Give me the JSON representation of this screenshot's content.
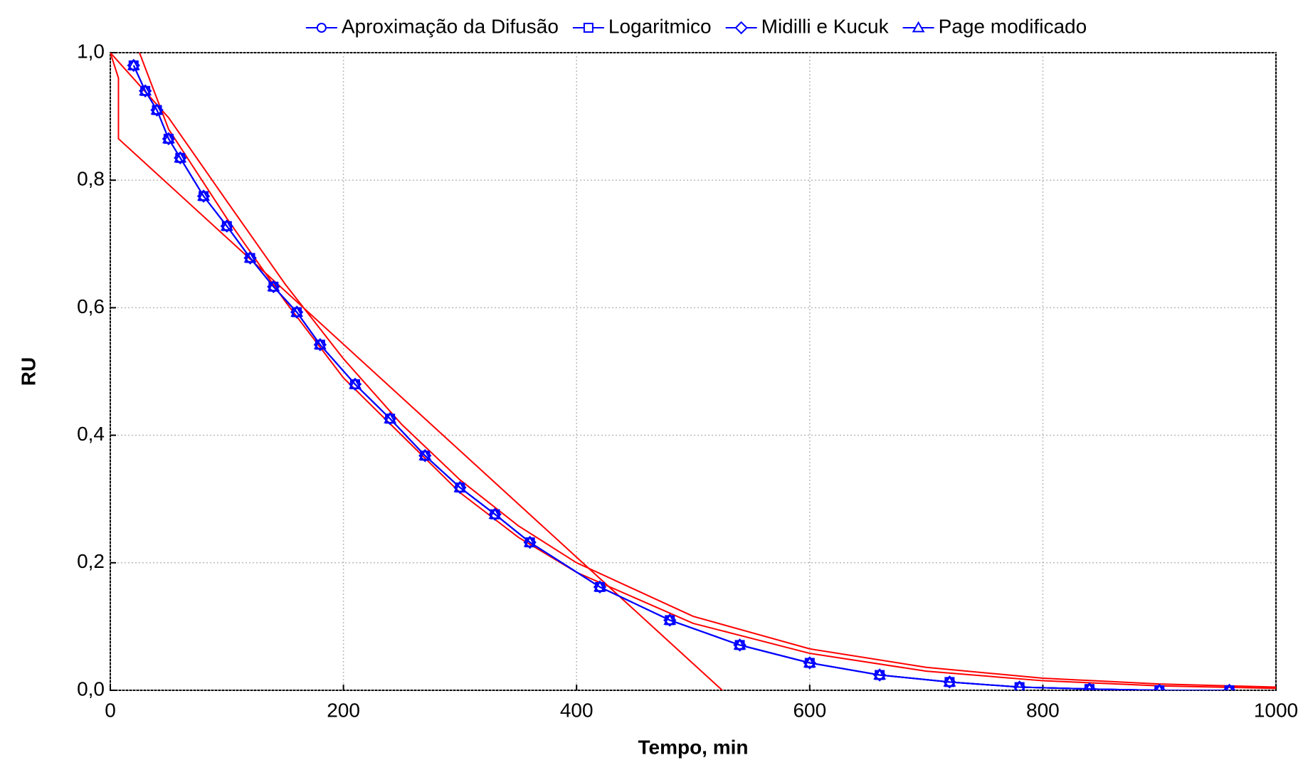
{
  "chart_data": {
    "type": "line",
    "xlabel": "Tempo, min",
    "ylabel": "RU",
    "x": [
      20,
      30,
      40,
      50,
      60,
      80,
      100,
      120,
      140,
      160,
      180,
      210,
      240,
      270,
      300,
      330,
      360,
      420,
      480,
      540,
      600,
      660,
      720,
      780,
      840,
      900,
      960
    ],
    "series": [
      {
        "name": "Aproximação da Difusão",
        "color": "#0000ff",
        "marker": "circle",
        "values": [
          0.98,
          0.94,
          0.91,
          0.865,
          0.835,
          0.775,
          0.728,
          0.678,
          0.633,
          0.593,
          0.542,
          0.48,
          0.426,
          0.368,
          0.318,
          0.276,
          0.232,
          0.162,
          0.11,
          0.071,
          0.043,
          0.024,
          0.013,
          0.005,
          0.002,
          0.0,
          0.0
        ]
      },
      {
        "name": "Logaritmico",
        "color": "#0000ff",
        "marker": "square",
        "values": [
          0.98,
          0.94,
          0.91,
          0.865,
          0.835,
          0.775,
          0.728,
          0.678,
          0.633,
          0.593,
          0.542,
          0.48,
          0.426,
          0.368,
          0.318,
          0.276,
          0.232,
          0.162,
          0.11,
          0.071,
          0.043,
          0.024,
          0.013,
          0.005,
          0.002,
          0.0,
          0.0
        ]
      },
      {
        "name": "Midilli e Kucuk",
        "color": "#0000ff",
        "marker": "diamond",
        "values": [
          0.98,
          0.94,
          0.91,
          0.865,
          0.835,
          0.775,
          0.728,
          0.678,
          0.633,
          0.593,
          0.542,
          0.48,
          0.426,
          0.368,
          0.318,
          0.276,
          0.232,
          0.162,
          0.11,
          0.071,
          0.043,
          0.024,
          0.013,
          0.005,
          0.002,
          0.0,
          0.0
        ]
      },
      {
        "name": "Page modificado",
        "color": "#0000ff",
        "marker": "triangle",
        "values": [
          0.98,
          0.94,
          0.91,
          0.865,
          0.835,
          0.775,
          0.728,
          0.678,
          0.633,
          0.593,
          0.542,
          0.48,
          0.426,
          0.368,
          0.318,
          0.276,
          0.232,
          0.162,
          0.11,
          0.071,
          0.043,
          0.024,
          0.013,
          0.005,
          0.002,
          0.0,
          0.0
        ]
      }
    ],
    "fits": [
      {
        "color": "#ff0000",
        "x": [
          0,
          7,
          7,
          525
        ],
        "values": [
          1.0,
          0.96,
          0.865,
          0.0
        ]
      },
      {
        "color": "#ff0000",
        "x": [
          0,
          50,
          100,
          150,
          200,
          250,
          300,
          350,
          400,
          500,
          600,
          700,
          800,
          900,
          1000
        ],
        "values": [
          1.0,
          0.898,
          0.767,
          0.637,
          0.52,
          0.417,
          0.33,
          0.258,
          0.2,
          0.116,
          0.065,
          0.036,
          0.019,
          0.0099,
          0.005
        ]
      },
      {
        "color": "#ff0000",
        "x": [
          25,
          50,
          100,
          150,
          200,
          250,
          300,
          350,
          400,
          500,
          600,
          700,
          800,
          900,
          1000
        ],
        "values": [
          1.0,
          0.88,
          0.74,
          0.61,
          0.49,
          0.4,
          0.31,
          0.24,
          0.185,
          0.105,
          0.058,
          0.03,
          0.015,
          0.007,
          0.003
        ]
      }
    ],
    "xlim": [
      0,
      1000
    ],
    "xticks": [
      0,
      200,
      400,
      600,
      800,
      1000
    ],
    "ylim": [
      0,
      1
    ],
    "yticks": [
      {
        "value": 0,
        "label": "0,0"
      },
      {
        "value": 0.2,
        "label": "0,2"
      },
      {
        "value": 0.4,
        "label": "0,4"
      },
      {
        "value": 0.6,
        "label": "0,6"
      },
      {
        "value": 0.8,
        "label": "0,8"
      },
      {
        "value": 1,
        "label": "1,0"
      }
    ],
    "grid": true,
    "legend": "top"
  }
}
